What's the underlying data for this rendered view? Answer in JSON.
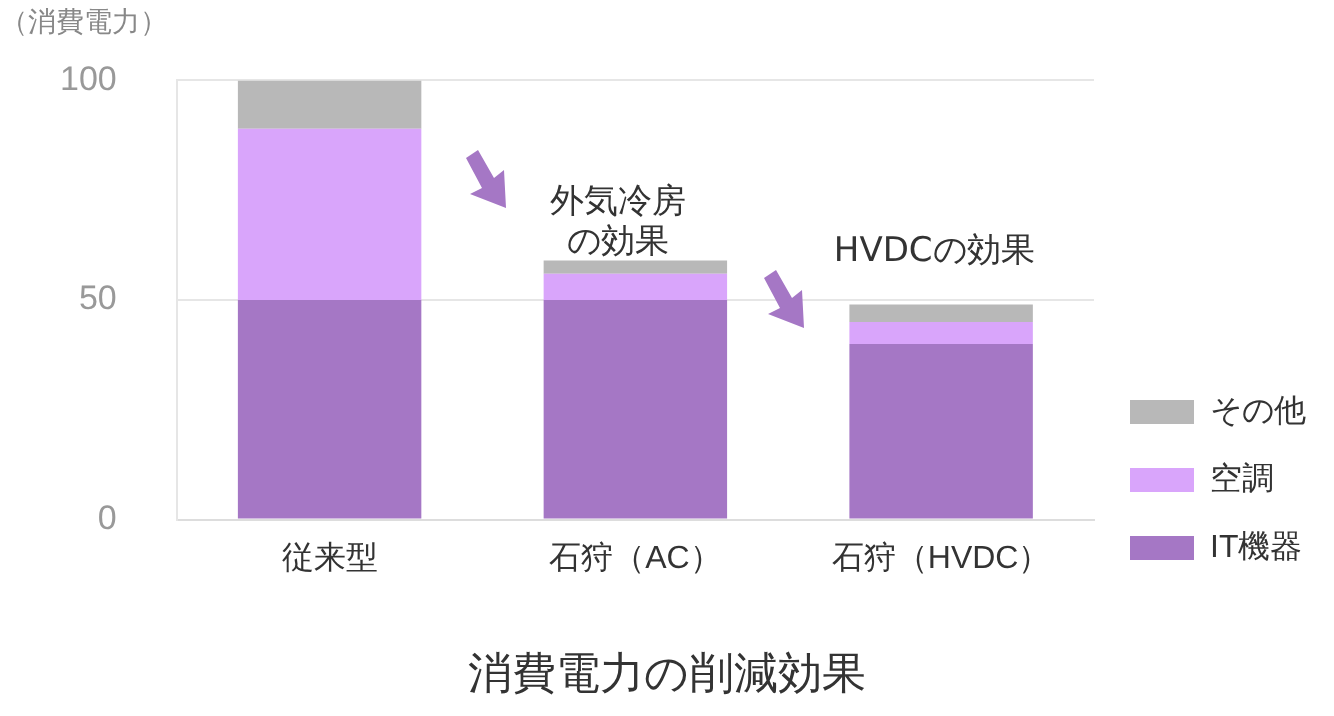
{
  "chart_data": {
    "type": "bar",
    "title": "消費電力の削減効果",
    "ylabel": "（消費電力）",
    "categories": [
      "従来型",
      "石狩（AC）",
      "石狩（HVDC）"
    ],
    "stacked": true,
    "series": [
      {
        "name": "IT機器",
        "color": "#a577c5",
        "values": [
          50,
          50,
          40
        ]
      },
      {
        "name": "空調",
        "color": "#d9a5fb",
        "values": [
          39,
          6,
          5
        ]
      },
      {
        "name": "その他",
        "color": "#b8b8b8",
        "values": [
          11,
          3,
          4
        ]
      }
    ],
    "ylim": [
      0,
      100
    ],
    "yticks": [
      0,
      50,
      100
    ],
    "grid": "y",
    "legend": "bottom right",
    "annotations": [
      "外気冷房",
      "の効果",
      "HVDCの効果"
    ]
  }
}
